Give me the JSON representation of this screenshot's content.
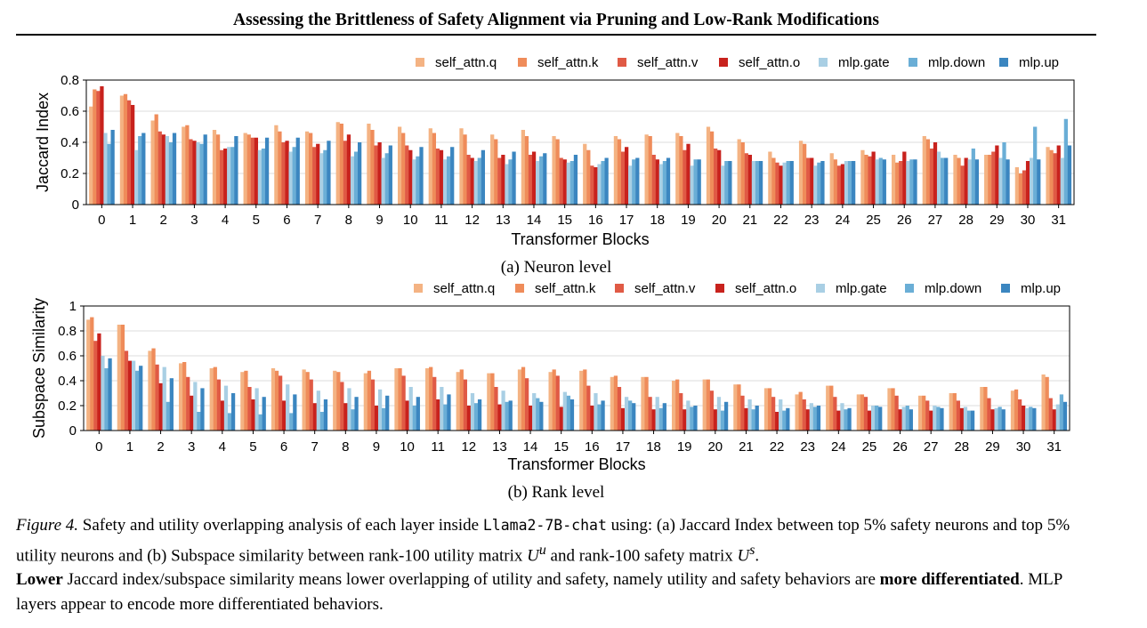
{
  "header": {
    "title": "Assessing the Brittleness of Safety Alignment via Pruning and Low-Rank Modifications"
  },
  "palette": {
    "self_attn.q": "#f4b383",
    "self_attn.k": "#ef8c5a",
    "self_attn.v": "#e05a45",
    "self_attn.o": "#c8221d",
    "mlp.gate": "#a9cfe4",
    "mlp.down": "#6aaed6",
    "mlp.up": "#3b86c0"
  },
  "chart_data": [
    {
      "type": "bar",
      "subcaption": "(a) Neuron level",
      "xlabel": "Transformer Blocks",
      "ylabel": "Jaccard Index",
      "ylim": [
        0,
        0.8
      ],
      "yticks": [
        "0",
        "0.2",
        "0.4",
        "0.6",
        "0.8"
      ],
      "grid": true,
      "legend": "top-right",
      "categories": [
        "0",
        "1",
        "2",
        "3",
        "4",
        "5",
        "6",
        "7",
        "8",
        "9",
        "10",
        "11",
        "12",
        "13",
        "14",
        "15",
        "16",
        "17",
        "18",
        "19",
        "20",
        "21",
        "22",
        "23",
        "24",
        "25",
        "26",
        "27",
        "28",
        "29",
        "30",
        "31"
      ],
      "series": [
        {
          "name": "self_attn.q",
          "values": [
            0.63,
            0.7,
            0.54,
            0.5,
            0.48,
            0.46,
            0.51,
            0.47,
            0.53,
            0.52,
            0.5,
            0.49,
            0.49,
            0.45,
            0.48,
            0.44,
            0.39,
            0.44,
            0.45,
            0.46,
            0.5,
            0.42,
            0.34,
            0.41,
            0.33,
            0.35,
            0.32,
            0.44,
            0.32,
            0.32,
            0.24,
            0.37
          ]
        },
        {
          "name": "self_attn.k",
          "values": [
            0.74,
            0.71,
            0.58,
            0.51,
            0.45,
            0.45,
            0.47,
            0.46,
            0.52,
            0.48,
            0.46,
            0.46,
            0.45,
            0.42,
            0.44,
            0.42,
            0.35,
            0.42,
            0.44,
            0.44,
            0.47,
            0.4,
            0.3,
            0.39,
            0.29,
            0.32,
            0.27,
            0.42,
            0.3,
            0.32,
            0.2,
            0.35
          ]
        },
        {
          "name": "self_attn.v",
          "values": [
            0.73,
            0.67,
            0.47,
            0.42,
            0.35,
            0.43,
            0.4,
            0.37,
            0.41,
            0.38,
            0.38,
            0.36,
            0.32,
            0.3,
            0.32,
            0.3,
            0.25,
            0.34,
            0.32,
            0.35,
            0.36,
            0.33,
            0.27,
            0.3,
            0.25,
            0.31,
            0.28,
            0.36,
            0.25,
            0.34,
            0.22,
            0.33
          ]
        },
        {
          "name": "self_attn.o",
          "values": [
            0.76,
            0.64,
            0.45,
            0.41,
            0.36,
            0.43,
            0.41,
            0.39,
            0.45,
            0.4,
            0.35,
            0.35,
            0.3,
            0.32,
            0.34,
            0.29,
            0.24,
            0.37,
            0.29,
            0.39,
            0.35,
            0.32,
            0.25,
            0.3,
            0.26,
            0.34,
            0.34,
            0.4,
            0.3,
            0.38,
            0.28,
            0.38
          ]
        },
        {
          "name": "mlp.gate",
          "values": [
            0.46,
            0.35,
            0.44,
            0.4,
            0.37,
            0.35,
            0.34,
            0.33,
            0.31,
            0.3,
            0.29,
            0.29,
            0.28,
            0.26,
            0.28,
            0.27,
            0.26,
            0.25,
            0.26,
            0.25,
            0.25,
            0.28,
            0.27,
            0.25,
            0.28,
            0.29,
            0.28,
            0.34,
            0.29,
            0.3,
            0.3,
            0.3
          ]
        },
        {
          "name": "mlp.down",
          "values": [
            0.39,
            0.44,
            0.4,
            0.39,
            0.37,
            0.36,
            0.37,
            0.35,
            0.34,
            0.33,
            0.31,
            0.31,
            0.3,
            0.29,
            0.31,
            0.28,
            0.28,
            0.29,
            0.28,
            0.29,
            0.28,
            0.28,
            0.28,
            0.27,
            0.28,
            0.3,
            0.29,
            0.3,
            0.36,
            0.4,
            0.5,
            0.55
          ]
        },
        {
          "name": "mlp.up",
          "values": [
            0.48,
            0.46,
            0.46,
            0.45,
            0.44,
            0.43,
            0.43,
            0.41,
            0.4,
            0.38,
            0.37,
            0.37,
            0.35,
            0.34,
            0.33,
            0.32,
            0.3,
            0.3,
            0.3,
            0.29,
            0.28,
            0.28,
            0.28,
            0.28,
            0.28,
            0.29,
            0.29,
            0.3,
            0.29,
            0.29,
            0.29,
            0.38
          ]
        }
      ]
    },
    {
      "type": "bar",
      "subcaption": "(b) Rank level",
      "xlabel": "Transformer Blocks",
      "ylabel": "Subspace Similarity",
      "ylim": [
        0,
        1
      ],
      "yticks": [
        "0",
        "0.2",
        "0.4",
        "0.6",
        "0.8",
        "1"
      ],
      "grid": true,
      "legend": "top-right",
      "categories": [
        "0",
        "1",
        "2",
        "3",
        "4",
        "5",
        "6",
        "7",
        "8",
        "9",
        "10",
        "11",
        "12",
        "13",
        "14",
        "15",
        "16",
        "17",
        "18",
        "19",
        "20",
        "21",
        "22",
        "23",
        "24",
        "25",
        "26",
        "27",
        "28",
        "29",
        "30",
        "31"
      ],
      "series": [
        {
          "name": "self_attn.q",
          "values": [
            0.89,
            0.85,
            0.64,
            0.54,
            0.5,
            0.47,
            0.5,
            0.49,
            0.48,
            0.46,
            0.5,
            0.5,
            0.47,
            0.46,
            0.49,
            0.47,
            0.48,
            0.43,
            0.43,
            0.4,
            0.41,
            0.37,
            0.34,
            0.29,
            0.36,
            0.29,
            0.34,
            0.28,
            0.3,
            0.35,
            0.32,
            0.45
          ]
        },
        {
          "name": "self_attn.k",
          "values": [
            0.91,
            0.85,
            0.66,
            0.55,
            0.51,
            0.48,
            0.48,
            0.47,
            0.47,
            0.48,
            0.5,
            0.51,
            0.49,
            0.46,
            0.51,
            0.49,
            0.49,
            0.44,
            0.43,
            0.41,
            0.41,
            0.37,
            0.34,
            0.31,
            0.36,
            0.29,
            0.34,
            0.28,
            0.3,
            0.35,
            0.33,
            0.43
          ]
        },
        {
          "name": "self_attn.v",
          "values": [
            0.72,
            0.64,
            0.53,
            0.43,
            0.41,
            0.35,
            0.44,
            0.41,
            0.39,
            0.41,
            0.44,
            0.43,
            0.41,
            0.35,
            0.42,
            0.44,
            0.36,
            0.35,
            0.27,
            0.3,
            0.32,
            0.28,
            0.27,
            0.25,
            0.27,
            0.27,
            0.28,
            0.24,
            0.24,
            0.26,
            0.25,
            0.26
          ]
        },
        {
          "name": "self_attn.o",
          "values": [
            0.78,
            0.56,
            0.38,
            0.28,
            0.24,
            0.25,
            0.24,
            0.22,
            0.22,
            0.2,
            0.24,
            0.25,
            0.2,
            0.21,
            0.2,
            0.19,
            0.2,
            0.18,
            0.17,
            0.17,
            0.17,
            0.18,
            0.15,
            0.17,
            0.16,
            0.16,
            0.17,
            0.16,
            0.18,
            0.17,
            0.2,
            0.17
          ]
        },
        {
          "name": "mlp.gate",
          "values": [
            0.6,
            0.56,
            0.51,
            0.39,
            0.36,
            0.34,
            0.37,
            0.32,
            0.34,
            0.33,
            0.35,
            0.35,
            0.3,
            0.32,
            0.3,
            0.31,
            0.3,
            0.27,
            0.27,
            0.24,
            0.27,
            0.25,
            0.25,
            0.22,
            0.22,
            0.2,
            0.19,
            0.2,
            0.19,
            0.18,
            0.18,
            0.21
          ]
        },
        {
          "name": "mlp.down",
          "values": [
            0.5,
            0.48,
            0.23,
            0.15,
            0.14,
            0.13,
            0.14,
            0.15,
            0.17,
            0.18,
            0.2,
            0.21,
            0.22,
            0.23,
            0.26,
            0.28,
            0.21,
            0.24,
            0.18,
            0.19,
            0.16,
            0.17,
            0.16,
            0.19,
            0.17,
            0.2,
            0.2,
            0.19,
            0.16,
            0.19,
            0.19,
            0.29
          ]
        },
        {
          "name": "mlp.up",
          "values": [
            0.58,
            0.52,
            0.42,
            0.34,
            0.3,
            0.27,
            0.29,
            0.25,
            0.27,
            0.28,
            0.27,
            0.29,
            0.25,
            0.24,
            0.23,
            0.25,
            0.24,
            0.22,
            0.22,
            0.2,
            0.23,
            0.2,
            0.18,
            0.2,
            0.18,
            0.19,
            0.17,
            0.18,
            0.16,
            0.17,
            0.18,
            0.23
          ]
        }
      ]
    }
  ],
  "caption": {
    "label": "Figure 4.",
    "p1": " Safety and utility overlapping analysis of each layer inside ",
    "model": "Llama2-7B-chat",
    "p2": " using: (a) Jaccard Index between top ",
    "pct1": "5%",
    "p3": " safety neurons and top ",
    "pct2": "5%",
    "p4": " utility neurons and (b) Subspace similarity between rank-100 utility matrix ",
    "mat_u": "U",
    "sup_u": "u",
    "p5": " and rank-100 safety matrix ",
    "mat_s": "U",
    "sup_s": "s",
    "p6": ".",
    "bold1": "Lower",
    "p7": " Jaccard index/subspace similarity means lower overlapping of utility and safety, namely utility and safety behaviors are ",
    "bold2": "more differentiated",
    "p8": ". MLP layers appear to encode more differentiated behaviors."
  }
}
